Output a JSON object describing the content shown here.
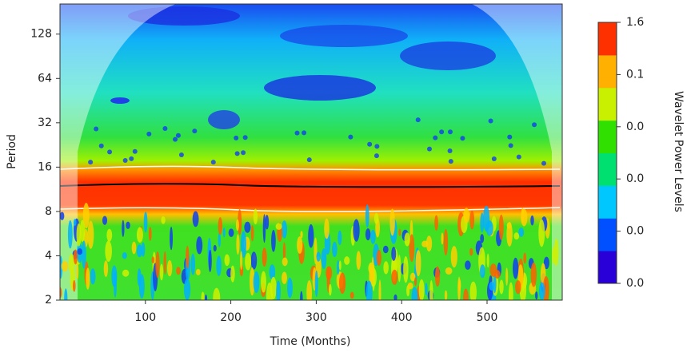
{
  "chart_data": {
    "type": "wavelet",
    "xlabel": "Time (Months)",
    "ylabel": "Period",
    "xlim": [
      0,
      588
    ],
    "xticks": [
      100,
      200,
      300,
      400,
      500
    ],
    "ylim": [
      2,
      205
    ],
    "yticks": [
      2,
      4,
      8,
      16,
      32,
      64,
      128
    ],
    "ylog": true,
    "colorbar": {
      "label": "Wavelet Power Levels",
      "tick_labels": [
        "0.0",
        "0.0",
        "0.0",
        "0.0",
        "0.1",
        "1.6"
      ],
      "colors": [
        "#2a00d8",
        "#0050ff",
        "#00c8ff",
        "#00e070",
        "#30e000",
        "#c8f000",
        "#ffb000",
        "#ff3000"
      ]
    }
  }
}
